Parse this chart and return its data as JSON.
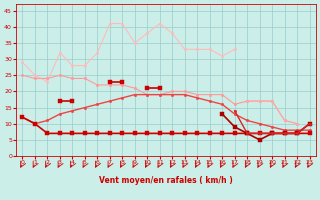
{
  "x": [
    0,
    1,
    2,
    3,
    4,
    5,
    6,
    7,
    8,
    9,
    10,
    11,
    12,
    13,
    14,
    15,
    16,
    17,
    18,
    19,
    20,
    21,
    22,
    23
  ],
  "series": [
    {
      "name": "lightest_pink_top",
      "color": "#ffbbbb",
      "linewidth": 0.8,
      "marker": "o",
      "markersize": 1.8,
      "values": [
        29,
        25,
        23,
        32,
        28,
        28,
        32,
        41,
        41,
        35,
        38,
        41,
        38,
        33,
        33,
        33,
        31,
        33,
        null,
        null,
        null,
        null,
        null,
        null
      ]
    },
    {
      "name": "light_pink_line1",
      "color": "#ff9999",
      "linewidth": 0.8,
      "marker": "o",
      "markersize": 1.8,
      "values": [
        25,
        24,
        24,
        25,
        24,
        24,
        22,
        22,
        22,
        21,
        19,
        19,
        20,
        20,
        19,
        19,
        19,
        16,
        17,
        17,
        17,
        11,
        10,
        null
      ]
    },
    {
      "name": "light_pink_line2",
      "color": "#ffaaaa",
      "linewidth": 0.8,
      "marker": "o",
      "markersize": 1.8,
      "values": [
        null,
        null,
        null,
        null,
        null,
        null,
        null,
        null,
        null,
        null,
        null,
        null,
        null,
        null,
        null,
        null,
        null,
        null,
        17,
        17,
        17,
        11,
        10,
        null
      ]
    },
    {
      "name": "medium_red_curve",
      "color": "#ee4444",
      "linewidth": 1.0,
      "marker": "o",
      "markersize": 1.8,
      "values": [
        12,
        10,
        11,
        13,
        14,
        15,
        16,
        17,
        18,
        19,
        19,
        19,
        19,
        19,
        18,
        17,
        16,
        13,
        11,
        10,
        9,
        8,
        8,
        8
      ]
    },
    {
      "name": "dark_red_markers_upper",
      "color": "#cc0000",
      "linewidth": 1.2,
      "marker": "s",
      "markersize": 2.5,
      "values": [
        null,
        null,
        null,
        17,
        17,
        null,
        null,
        23,
        23,
        null,
        21,
        21,
        null,
        null,
        null,
        null,
        null,
        null,
        null,
        null,
        null,
        null,
        null,
        null
      ]
    },
    {
      "name": "dark_red_flat",
      "color": "#cc0000",
      "linewidth": 1.2,
      "marker": "s",
      "markersize": 2.5,
      "values": [
        12,
        10,
        7,
        7,
        7,
        7,
        7,
        7,
        7,
        7,
        7,
        7,
        7,
        7,
        7,
        7,
        7,
        7,
        7,
        7,
        7,
        7,
        7,
        7
      ]
    },
    {
      "name": "dark_maroon_curve",
      "color": "#aa0000",
      "linewidth": 1.2,
      "marker": "s",
      "markersize": 2.5,
      "values": [
        null,
        null,
        null,
        null,
        null,
        null,
        null,
        null,
        null,
        null,
        null,
        null,
        null,
        null,
        null,
        null,
        13,
        9,
        7,
        5,
        7,
        7,
        7,
        10
      ]
    },
    {
      "name": "red_descending",
      "color": "#dd2222",
      "linewidth": 1.0,
      "marker": "o",
      "markersize": 1.8,
      "values": [
        null,
        null,
        null,
        null,
        null,
        null,
        null,
        null,
        null,
        null,
        null,
        null,
        null,
        null,
        null,
        null,
        null,
        14,
        7,
        7,
        7,
        7,
        7,
        10
      ]
    }
  ],
  "xlabel": "Vent moyen/en rafales ( km/h )",
  "xlim": [
    -0.5,
    23.5
  ],
  "ylim": [
    0,
    47
  ],
  "yticks": [
    0,
    5,
    10,
    15,
    20,
    25,
    30,
    35,
    40,
    45
  ],
  "xticks": [
    0,
    1,
    2,
    3,
    4,
    5,
    6,
    7,
    8,
    9,
    10,
    11,
    12,
    13,
    14,
    15,
    16,
    17,
    18,
    19,
    20,
    21,
    22,
    23
  ],
  "bg_color": "#cceee8",
  "grid_color": "#99cccc",
  "axis_color": "#cc0000",
  "tick_color": "#cc0000",
  "xlabel_color": "#cc0000",
  "figure_bg": "#cceee8"
}
